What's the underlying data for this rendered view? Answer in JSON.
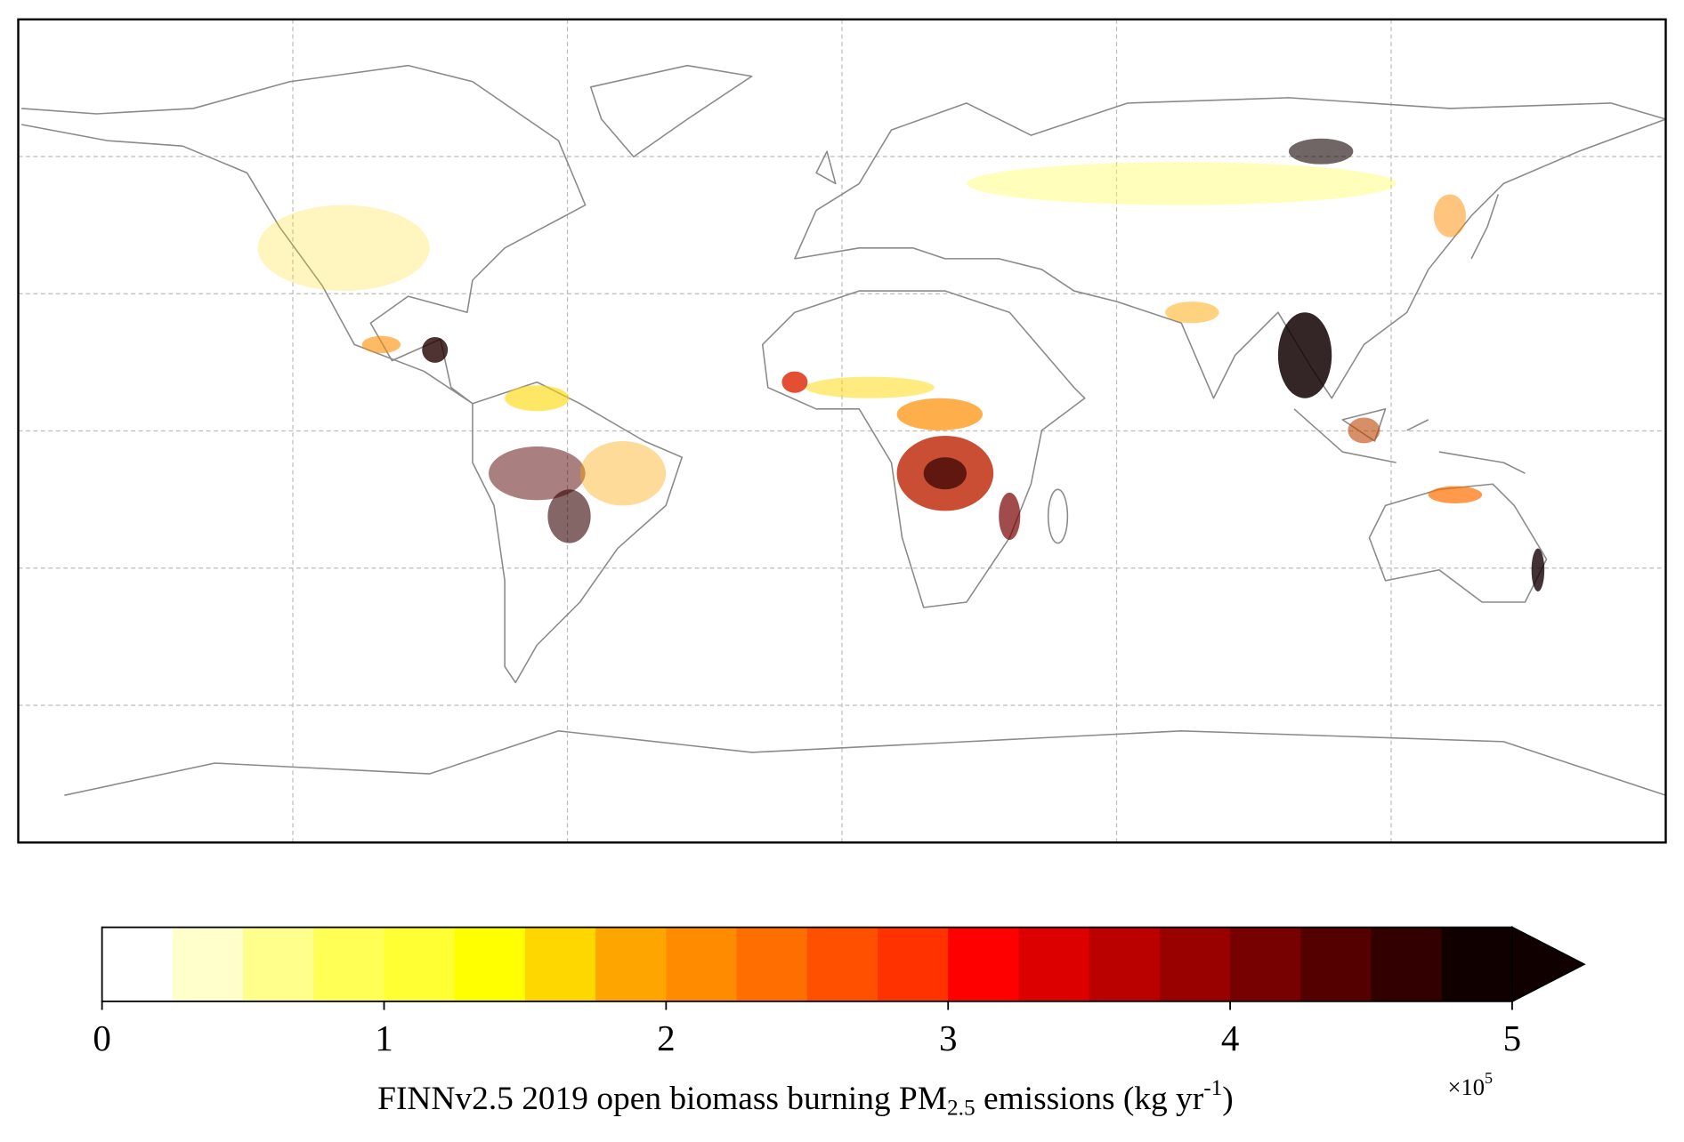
{
  "chart_data": {
    "type": "map",
    "map": {
      "xlim": [
        -180,
        180
      ],
      "ylim": [
        -90,
        90
      ],
      "xticks": [
        -120,
        -60,
        0,
        60,
        120
      ],
      "yticks": [
        -60,
        -30,
        0,
        30,
        60
      ],
      "grid": true,
      "grid_color": "#bbbbbb"
    },
    "colorbar": {
      "boundaries": [
        0,
        0.25,
        0.5,
        0.75,
        1,
        1.25,
        1.5,
        1.75,
        2,
        2.25,
        2.5,
        2.75,
        3,
        3.25,
        3.5,
        3.75,
        4,
        4.25,
        4.5,
        4.75,
        5
      ],
      "colors": [
        "#ffffff",
        "#ffffcc",
        "#ffff8c",
        "#ffff55",
        "#ffff33",
        "#ffff00",
        "#ffd700",
        "#ffa500",
        "#ff8c00",
        "#ff6e00",
        "#ff5000",
        "#ff3200",
        "#ff0000",
        "#dd0000",
        "#bb0000",
        "#990000",
        "#770000",
        "#550000",
        "#330000",
        "#110000"
      ],
      "extend": "max",
      "ticks": [
        0,
        1,
        2,
        3,
        4,
        5
      ],
      "label": {
        "main": "FINNv2.5 2019 open biomass burning PM",
        "sub": "2.5",
        "middle": " emissions (kg yr",
        "sup": "-1",
        "end": ")"
      },
      "offset_label": {
        "base": "×10",
        "exponent": "5"
      }
    }
  }
}
